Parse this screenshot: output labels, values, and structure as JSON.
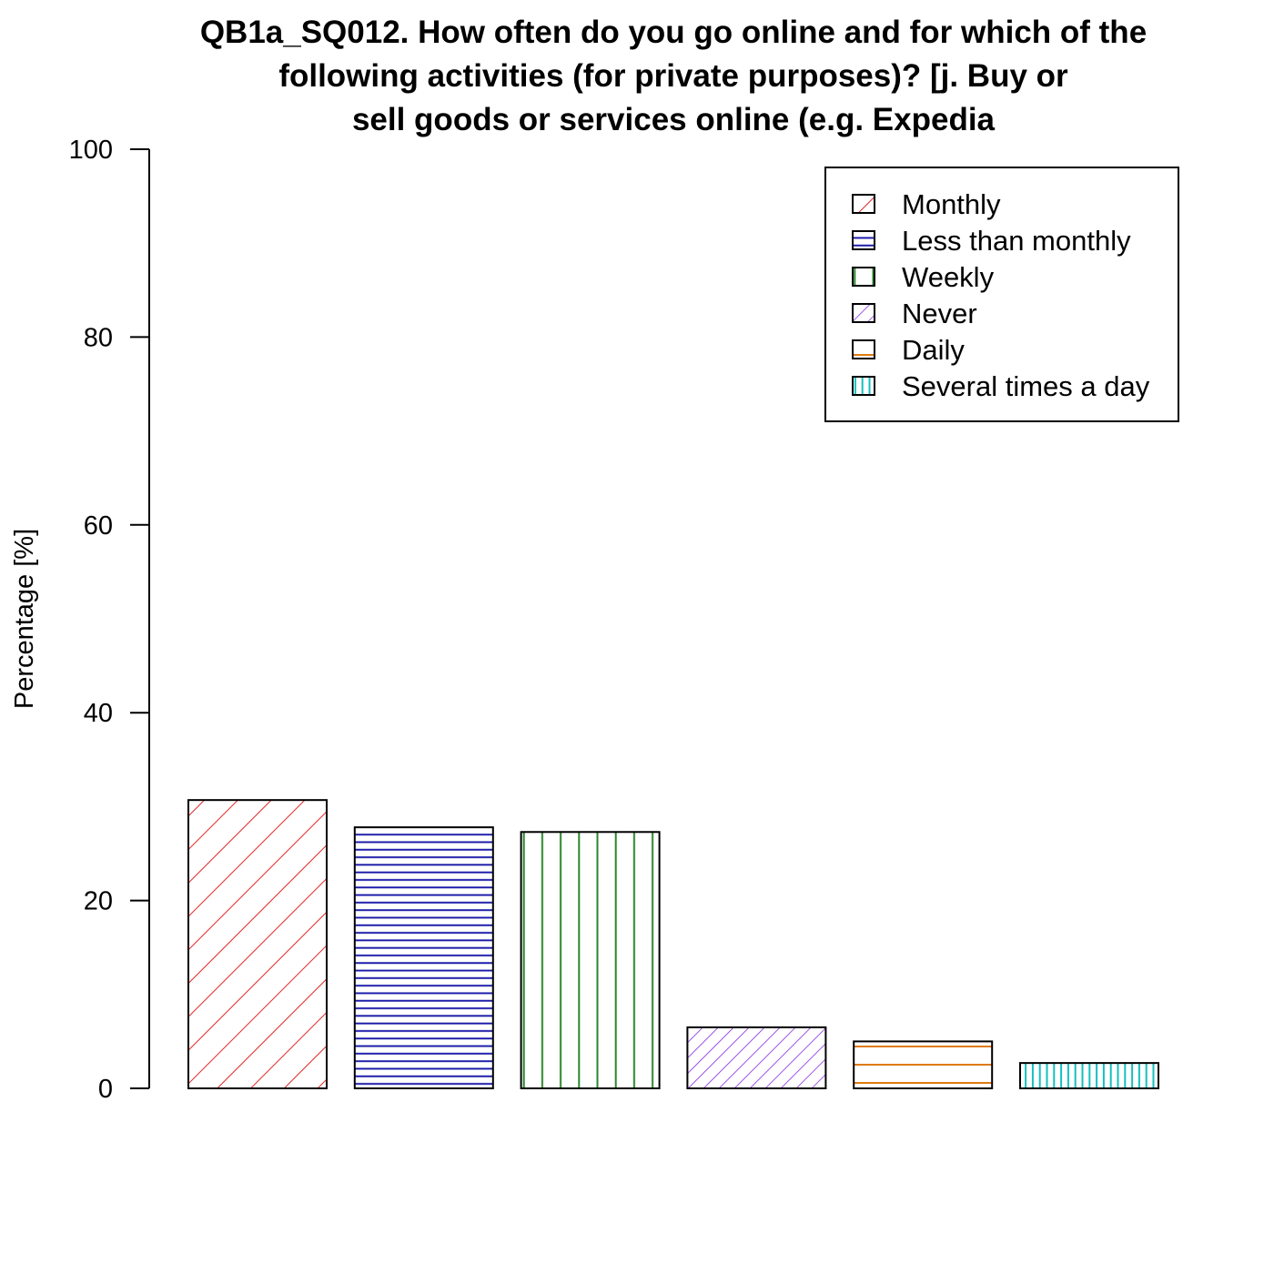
{
  "chart_data": {
    "type": "bar",
    "title_lines": [
      "QB1a_SQ012. How often do you go online and for which of the",
      "following activities (for private purposes)? [j.  Buy or",
      "sell goods or services online (e.g. Expedia"
    ],
    "ylabel": "Percentage [%]",
    "xlabel": "",
    "ylim": [
      0,
      100
    ],
    "yticks": [
      0,
      20,
      40,
      60,
      80,
      100
    ],
    "legend_position": "top-right",
    "grid": false,
    "categories": [
      "Monthly",
      "Less than monthly",
      "Weekly",
      "Never",
      "Daily",
      "Several times a day"
    ],
    "values": [
      30.7,
      27.8,
      27.3,
      6.5,
      5.0,
      2.7
    ],
    "colors": [
      "#e32626",
      "#1a1aa8",
      "#2a862a",
      "#8a2be2",
      "#e07a10",
      "#12c0c0"
    ],
    "patterns": [
      "diag-right",
      "horizontal-dense",
      "vertical",
      "diag-right-dense",
      "horizontal-sparse",
      "vertical-dense"
    ]
  }
}
